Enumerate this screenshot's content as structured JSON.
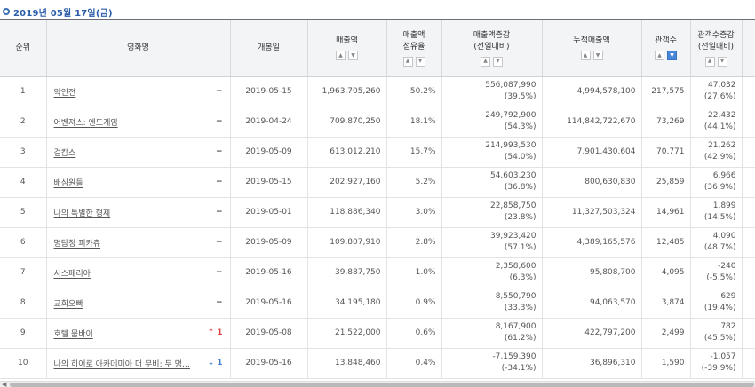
{
  "date_label": "2019년 05월 17일(금)",
  "headers": {
    "rank": "순위",
    "title": "영화명",
    "release": "개봉일",
    "sales": "매출액",
    "share_1": "매출액",
    "share_2": "점유율",
    "sales_chg_1": "매출액증감",
    "sales_chg_2": "(전일대비)",
    "cum_sales": "누적매출액",
    "audience": "관객수",
    "aud_chg_1": "관객수증감",
    "aud_chg_2": "(전일대비)"
  },
  "rows": [
    {
      "rank": "1",
      "title": "악인전",
      "change": "−",
      "release": "2019-05-15",
      "sales": "1,963,705,260",
      "share": "50.2%",
      "sales_chg": "556,087,990",
      "sales_chg_pct": "(39.5%)",
      "cum_sales": "4,994,578,100",
      "audience": "217,575",
      "aud_chg": "47,032",
      "aud_chg_pct": "(27.6%)"
    },
    {
      "rank": "2",
      "title": "어벤져스: 엔드게임",
      "change": "−",
      "release": "2019-04-24",
      "sales": "709,870,250",
      "share": "18.1%",
      "sales_chg": "249,792,900",
      "sales_chg_pct": "(54.3%)",
      "cum_sales": "114,842,722,670",
      "audience": "73,269",
      "aud_chg": "22,432",
      "aud_chg_pct": "(44.1%)"
    },
    {
      "rank": "3",
      "title": "걸캅스",
      "change": "−",
      "release": "2019-05-09",
      "sales": "613,012,210",
      "share": "15.7%",
      "sales_chg": "214,993,530",
      "sales_chg_pct": "(54.0%)",
      "cum_sales": "7,901,430,604",
      "audience": "70,771",
      "aud_chg": "21,262",
      "aud_chg_pct": "(42.9%)"
    },
    {
      "rank": "4",
      "title": "배심원들",
      "change": "−",
      "release": "2019-05-15",
      "sales": "202,927,160",
      "share": "5.2%",
      "sales_chg": "54,603,230",
      "sales_chg_pct": "(36.8%)",
      "cum_sales": "800,630,830",
      "audience": "25,859",
      "aud_chg": "6,966",
      "aud_chg_pct": "(36.9%)"
    },
    {
      "rank": "5",
      "title": "나의 특별한 형제",
      "change": "−",
      "release": "2019-05-01",
      "sales": "118,886,340",
      "share": "3.0%",
      "sales_chg": "22,858,750",
      "sales_chg_pct": "(23.8%)",
      "cum_sales": "11,327,503,324",
      "audience": "14,961",
      "aud_chg": "1,899",
      "aud_chg_pct": "(14.5%)"
    },
    {
      "rank": "6",
      "title": "명탐정 피카츄",
      "change": "−",
      "release": "2019-05-09",
      "sales": "109,807,910",
      "share": "2.8%",
      "sales_chg": "39,923,420",
      "sales_chg_pct": "(57.1%)",
      "cum_sales": "4,389,165,576",
      "audience": "12,485",
      "aud_chg": "4,090",
      "aud_chg_pct": "(48.7%)"
    },
    {
      "rank": "7",
      "title": "서스페리아",
      "change": "−",
      "release": "2019-05-16",
      "sales": "39,887,750",
      "share": "1.0%",
      "sales_chg": "2,358,600",
      "sales_chg_pct": "(6.3%)",
      "cum_sales": "95,808,700",
      "audience": "4,095",
      "aud_chg": "-240",
      "aud_chg_pct": "(-5.5%)"
    },
    {
      "rank": "8",
      "title": "교회오빠",
      "change": "−",
      "release": "2019-05-16",
      "sales": "34,195,180",
      "share": "0.9%",
      "sales_chg": "8,550,790",
      "sales_chg_pct": "(33.3%)",
      "cum_sales": "94,063,570",
      "audience": "3,874",
      "aud_chg": "629",
      "aud_chg_pct": "(19.4%)"
    },
    {
      "rank": "9",
      "title": "호텔 뭄바이",
      "change": "↑ 1",
      "change_dir": "up",
      "release": "2019-05-08",
      "sales": "21,522,000",
      "share": "0.6%",
      "sales_chg": "8,167,900",
      "sales_chg_pct": "(61.2%)",
      "cum_sales": "422,797,200",
      "audience": "2,499",
      "aud_chg": "782",
      "aud_chg_pct": "(45.5%)"
    },
    {
      "rank": "10",
      "title": "나의 히어로 아카데미아 더 무비: 두 명…",
      "change": "↓ 1",
      "change_dir": "down",
      "release": "2019-05-16",
      "sales": "13,848,460",
      "share": "0.4%",
      "sales_chg": "-7,159,390",
      "sales_chg_pct": "(-34.1%)",
      "cum_sales": "36,896,310",
      "audience": "1,590",
      "aud_chg": "-1,057",
      "aud_chg_pct": "(-39.9%)"
    }
  ],
  "icons": {
    "sort_up": "chevron-up-icon",
    "sort_down": "chevron-down-icon",
    "scroll_left": "chevron-left-icon"
  },
  "colors": {
    "accent": "#2a5daa",
    "up": "#e03c3c",
    "down": "#3a7bd5",
    "sort_active": "#4a86d8"
  }
}
